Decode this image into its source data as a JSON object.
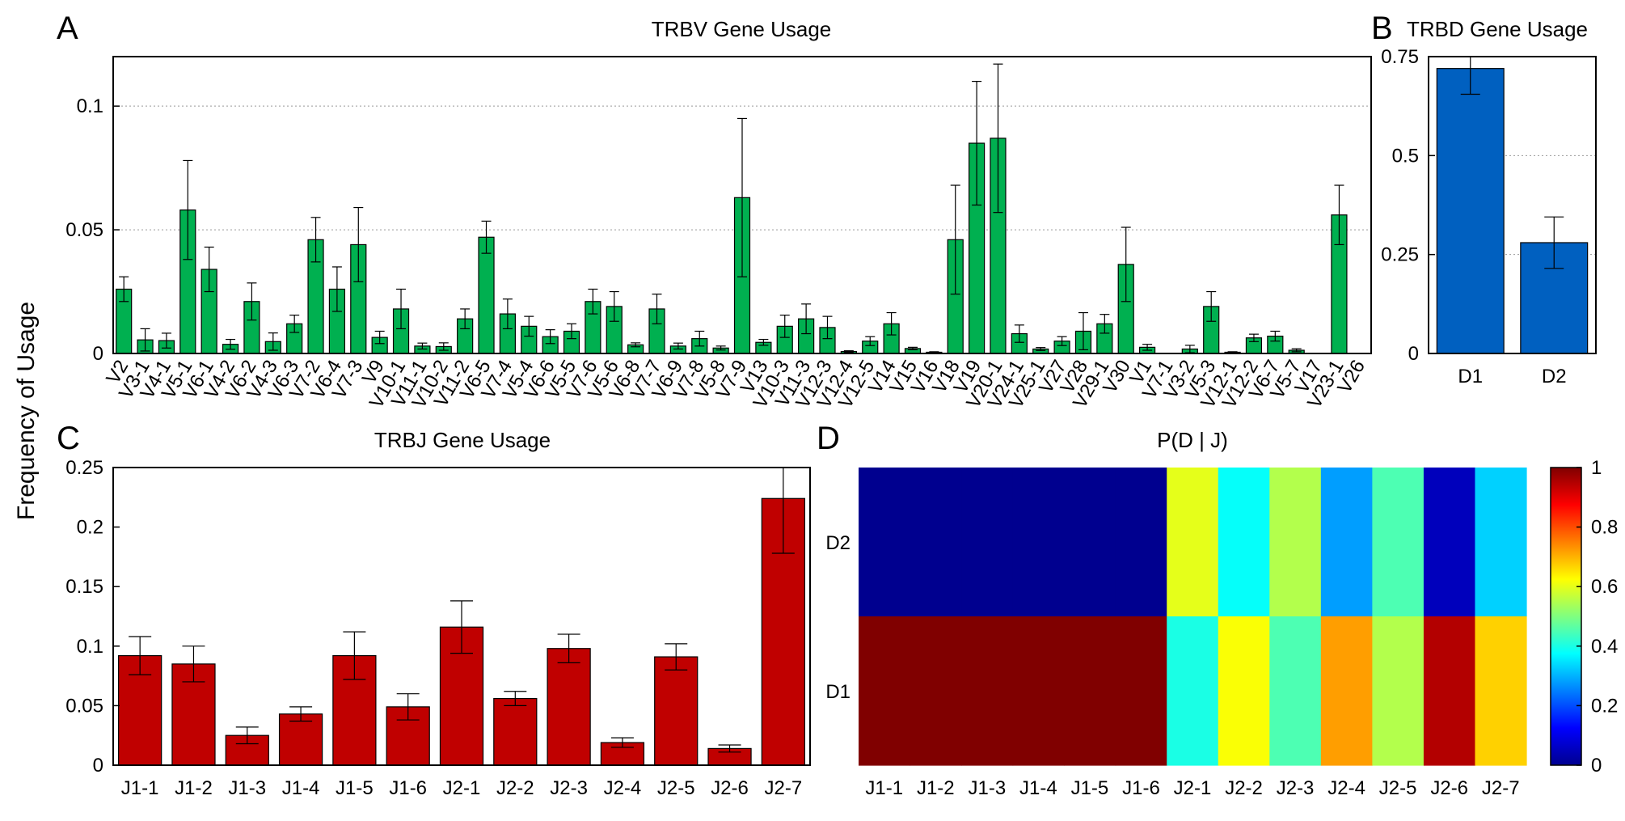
{
  "figure": {
    "ylabel": "Frequency of Usage",
    "colors": {
      "v": "#00b050",
      "d": "#0060c0",
      "j": "#c00000",
      "red_label": "#ff0000",
      "grid": "#999999"
    }
  },
  "chart_data": [
    {
      "panel": "A",
      "type": "bar",
      "title": "TRBV Gene Usage",
      "ylim": [
        0,
        0.12
      ],
      "yticks": [
        0,
        0.05,
        0.1
      ],
      "ytick_labels": [
        "0",
        "0.05",
        "0.1"
      ],
      "grid": true,
      "categories": [
        "V2",
        "V3-1",
        "V4-1",
        "V5-1",
        "V6-1",
        "V4-2",
        "V6-2",
        "V4-3",
        "V6-3",
        "V7-2",
        "V6-4",
        "V7-3",
        "V9",
        "V10-1",
        "V11-1",
        "V10-2",
        "V11-2",
        "V6-5",
        "V7-4",
        "V5-4",
        "V6-6",
        "V5-5",
        "V7-6",
        "V5-6",
        "V6-8",
        "V7-7",
        "V6-9",
        "V7-8",
        "V5-8",
        "V7-9",
        "V13",
        "V10-3",
        "V11-3",
        "V12-3",
        "V12-4",
        "V12-5",
        "V14",
        "V15",
        "V16",
        "V18",
        "V19",
        "V20-1",
        "V24-1",
        "V25-1",
        "V27",
        "V28",
        "V29-1",
        "V30",
        "V1",
        "V7-1",
        "V3-2",
        "V5-3",
        "V12-1",
        "V12-2",
        "V6-7",
        "V5-7",
        "V17",
        "V23-1",
        "V26"
      ],
      "red_categories": [
        "V1",
        "V7-1",
        "V3-2",
        "V5-3",
        "V12-1",
        "V12-2",
        "V6-7",
        "V5-7",
        "V17",
        "V23-1",
        "V26"
      ],
      "values": [
        0.026,
        0.0055,
        0.0052,
        0.058,
        0.034,
        0.0037,
        0.021,
        0.0048,
        0.012,
        0.046,
        0.026,
        0.044,
        0.0065,
        0.018,
        0.003,
        0.0028,
        0.014,
        0.047,
        0.016,
        0.011,
        0.0068,
        0.009,
        0.021,
        0.019,
        0.0035,
        0.018,
        0.003,
        0.006,
        0.0022,
        0.063,
        0.0045,
        0.011,
        0.014,
        0.0105,
        0.0008,
        0.005,
        0.012,
        0.002,
        0.0005,
        0.046,
        0.085,
        0.087,
        0.008,
        0.0018,
        0.005,
        0.009,
        0.012,
        0.036,
        0.0025,
        0,
        0.0018,
        0.019,
        0.0005,
        0.0063,
        0.007,
        0.0013,
        0,
        0.056,
        0
      ],
      "errors": [
        0.005,
        0.0045,
        0.003,
        0.02,
        0.009,
        0.002,
        0.0075,
        0.0035,
        0.0035,
        0.009,
        0.009,
        0.015,
        0.0025,
        0.008,
        0.0012,
        0.0015,
        0.004,
        0.0065,
        0.006,
        0.004,
        0.0028,
        0.003,
        0.005,
        0.006,
        0.0008,
        0.006,
        0.0012,
        0.003,
        0.0008,
        0.032,
        0.0012,
        0.0045,
        0.006,
        0.0045,
        0.0003,
        0.0018,
        0.0045,
        0.0005,
        0.0002,
        0.022,
        0.025,
        0.03,
        0.0035,
        0.0006,
        0.0018,
        0.0075,
        0.0038,
        0.015,
        0.0012,
        0,
        0.0015,
        0.006,
        0.0002,
        0.0015,
        0.002,
        0.0006,
        0,
        0.012,
        0
      ]
    },
    {
      "panel": "B",
      "type": "bar",
      "title": "TRBD Gene Usage",
      "ylim": [
        0,
        0.75
      ],
      "yticks": [
        0,
        0.25,
        0.5,
        0.75
      ],
      "ytick_labels": [
        "0",
        "0.25",
        "0.5",
        "0.75"
      ],
      "grid": true,
      "categories": [
        "D1",
        "D2"
      ],
      "values": [
        0.72,
        0.28
      ],
      "errors": [
        0.065,
        0.065
      ]
    },
    {
      "panel": "C",
      "type": "bar",
      "title": "TRBJ Gene Usage",
      "ylim": [
        0,
        0.25
      ],
      "yticks": [
        0,
        0.05,
        0.1,
        0.15,
        0.2,
        0.25
      ],
      "ytick_labels": [
        "0",
        "0.05",
        "0.1",
        "0.15",
        "0.2",
        "0.25"
      ],
      "grid": false,
      "categories": [
        "J1-1",
        "J1-2",
        "J1-3",
        "J1-4",
        "J1-5",
        "J1-6",
        "J2-1",
        "J2-2",
        "J2-3",
        "J2-4",
        "J2-5",
        "J2-6",
        "J2-7"
      ],
      "values": [
        0.092,
        0.085,
        0.025,
        0.043,
        0.092,
        0.049,
        0.116,
        0.056,
        0.098,
        0.019,
        0.091,
        0.014,
        0.224
      ],
      "errors": [
        0.016,
        0.015,
        0.007,
        0.006,
        0.02,
        0.011,
        0.022,
        0.006,
        0.012,
        0.004,
        0.011,
        0.003,
        0.046
      ]
    },
    {
      "panel": "D",
      "type": "heatmap",
      "title": "P(D | J)",
      "x": [
        "J1-1",
        "J1-2",
        "J1-3",
        "J1-4",
        "J1-5",
        "J1-6",
        "J2-1",
        "J2-2",
        "J2-3",
        "J2-4",
        "J2-5",
        "J2-6",
        "J2-7"
      ],
      "y": [
        "D2",
        "D1"
      ],
      "values": [
        [
          0,
          0,
          0,
          0,
          0,
          0,
          0.6,
          0.38,
          0.55,
          0.28,
          0.45,
          0.05,
          0.33
        ],
        [
          1,
          1,
          1,
          1,
          1,
          1,
          0.4,
          0.62,
          0.45,
          0.72,
          0.55,
          0.95,
          0.67
        ]
      ],
      "colorbar": {
        "range": [
          0,
          1
        ],
        "ticks": [
          "0",
          "0.2",
          "0.4",
          "0.6",
          "0.8",
          "1"
        ]
      }
    }
  ]
}
